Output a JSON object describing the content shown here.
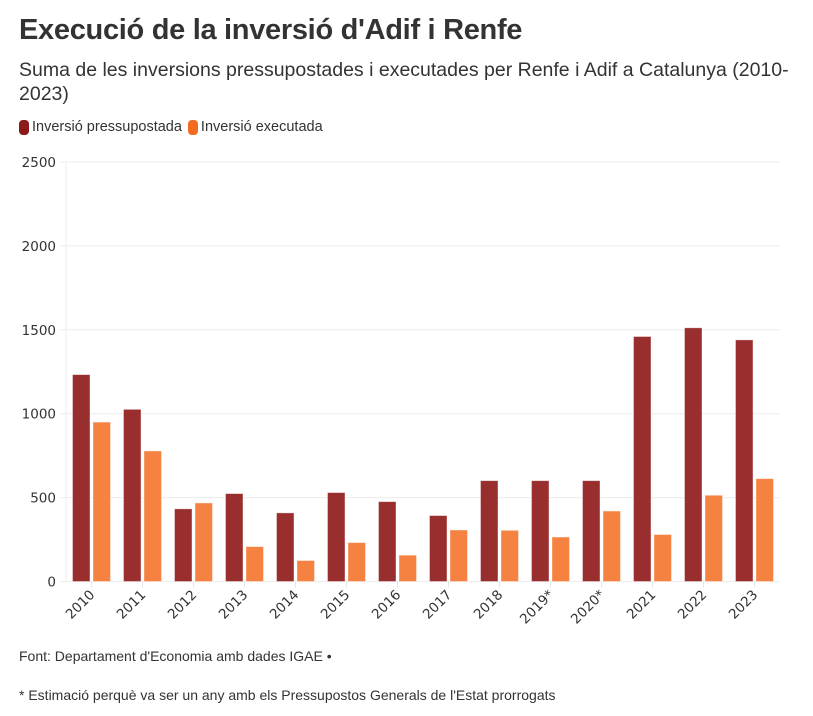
{
  "header": {
    "title": "Execució de la inversió d'Adif i Renfe",
    "subtitle": "Suma de les inversions pressupostades i executades per Renfe i Adif a Catalunya (2010-2023)"
  },
  "legend": [
    {
      "label": "Inversió pressupostada",
      "color": "#8b1a1a"
    },
    {
      "label": "Inversió executada",
      "color": "#f26b21"
    }
  ],
  "footer": {
    "source": "Font: Departament d'Economia amb dades IGAE •",
    "note": "* Estimació perquè va ser un any amb els Pressupostos Generals de l'Estat prorrogats"
  },
  "chart_data": {
    "type": "bar",
    "title": "Execució de la inversió d'Adif i Renfe",
    "subtitle": "Suma de les inversions pressupostades i executades per Renfe i Adif a Catalunya (2010-2023)",
    "xlabel": "",
    "ylabel": "",
    "ylim": [
      0,
      2500
    ],
    "yticks": [
      0,
      500,
      1000,
      1500,
      2000,
      2500
    ],
    "grid": true,
    "legend_position": "top-left",
    "categories": [
      "2010",
      "2011",
      "2012",
      "2013",
      "2014",
      "2015",
      "2016",
      "2017",
      "2018",
      "2019*",
      "2020*",
      "2021",
      "2022",
      "2023"
    ],
    "series": [
      {
        "name": "Inversió pressupostada",
        "color": "#992e2e",
        "values": [
          1233,
          1026,
          433,
          524,
          409,
          530,
          476,
          393,
          601,
          601,
          601,
          1460,
          1512,
          1440
        ]
      },
      {
        "name": "Inversió executada",
        "color": "#f58240",
        "values": [
          950,
          778,
          468,
          208,
          125,
          232,
          157,
          307,
          305,
          265,
          420,
          280,
          514,
          613
        ]
      }
    ]
  }
}
